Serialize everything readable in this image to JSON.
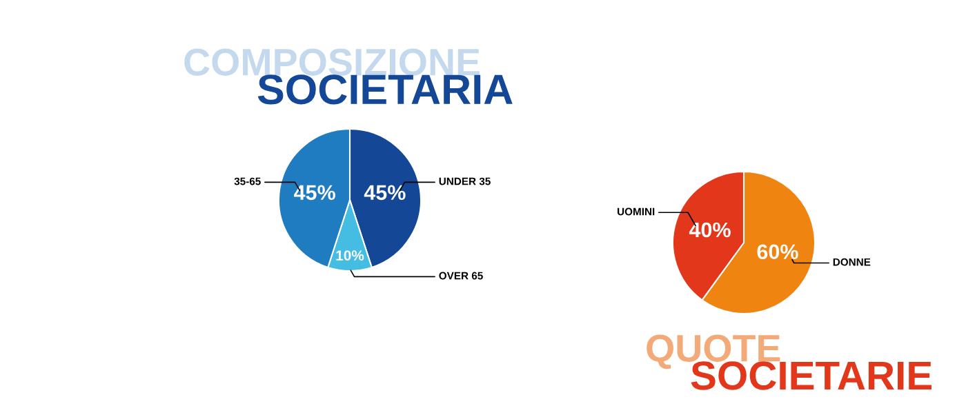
{
  "chart_data": [
    {
      "type": "pie",
      "title": "COMPOSIZIONE",
      "subtitle": "SOCIETARIA",
      "categories": [
        "UNDER 35",
        "OVER 65",
        "35-65"
      ],
      "values": [
        45,
        10,
        45
      ],
      "colors": [
        "#144796",
        "#45bde3",
        "#1f7cc1"
      ],
      "value_labels": [
        "45%",
        "10%",
        "45%"
      ]
    },
    {
      "type": "pie",
      "title": "QUOTE",
      "subtitle": "SOCIETARIE",
      "categories": [
        "DONNE",
        "UOMINI"
      ],
      "values": [
        60,
        40
      ],
      "colors": [
        "#ef8410",
        "#e2371a"
      ],
      "value_labels": [
        "60%",
        "40%"
      ]
    }
  ]
}
